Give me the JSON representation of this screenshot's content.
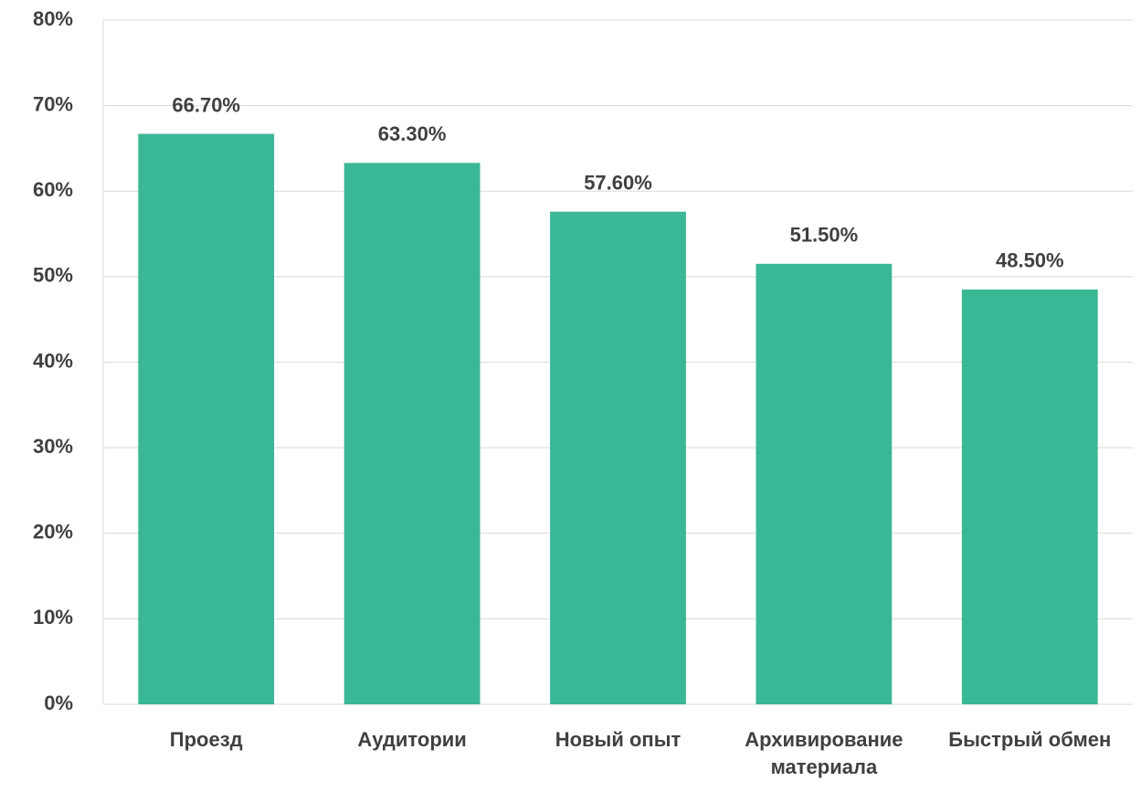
{
  "chart_data": {
    "type": "bar",
    "categories": [
      "Проезд",
      "Аудитории",
      "Новый опыт",
      "Архивирование материала",
      "Быстрый обмен"
    ],
    "values": [
      66.7,
      63.3,
      57.6,
      51.5,
      48.5
    ],
    "value_labels": [
      "66.70%",
      "63.30%",
      "57.60%",
      "51.50%",
      "48.50%"
    ],
    "color": "#3ab795",
    "ylim": [
      0,
      80
    ],
    "yticks": [
      {
        "value": 0,
        "label": "0%"
      },
      {
        "value": 10,
        "label": "10%"
      },
      {
        "value": 20,
        "label": "20%"
      },
      {
        "value": 30,
        "label": "30%"
      },
      {
        "value": 40,
        "label": "40%"
      },
      {
        "value": 50,
        "label": "50%"
      },
      {
        "value": 60,
        "label": "60%"
      },
      {
        "value": 70,
        "label": "70%"
      },
      {
        "value": 80,
        "label": "80%"
      }
    ],
    "grid": true
  }
}
